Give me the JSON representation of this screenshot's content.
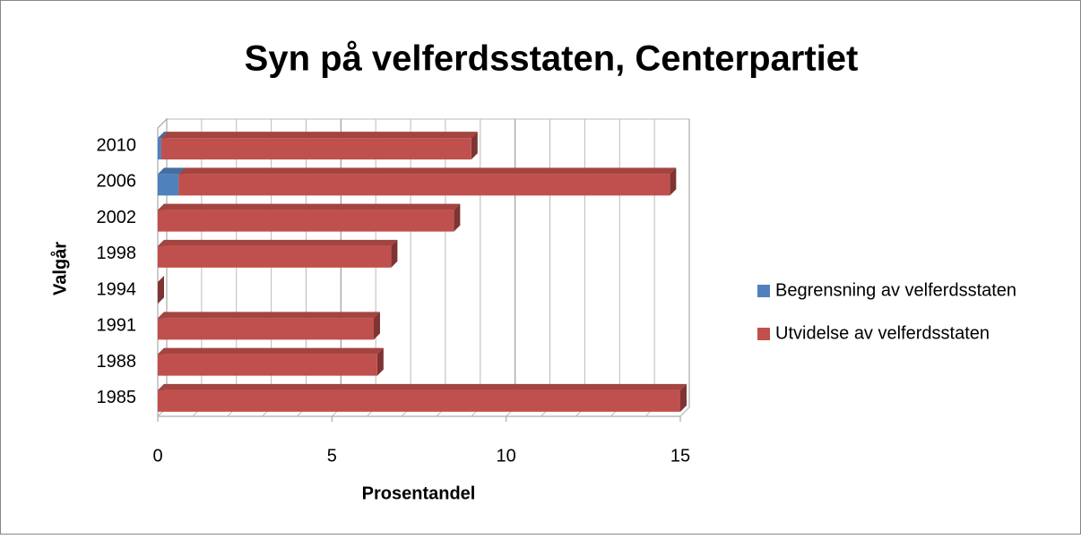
{
  "chart_data": {
    "type": "bar",
    "orientation": "horizontal",
    "stacked": true,
    "title": "Syn på velferdsstaten, Centerpartiet",
    "x_label": "Prosentandel",
    "y_label": "Valgår",
    "categories": [
      "1985",
      "1988",
      "1991",
      "1994",
      "1998",
      "2002",
      "2006",
      "2010"
    ],
    "series": [
      {
        "name": "Begrensning av velferdsstaten",
        "color": "#4f81bd",
        "values": [
          0,
          0,
          0,
          0,
          0,
          0,
          0.6,
          0.1
        ]
      },
      {
        "name": "Utvidelse av velferdsstaten",
        "color": "#c0504d",
        "values": [
          15.0,
          6.3,
          6.2,
          0,
          6.7,
          8.5,
          14.1,
          8.9
        ]
      }
    ],
    "xlim": [
      0,
      15
    ],
    "xticks": [
      0,
      5,
      10,
      15
    ],
    "minor_grid_step": 1,
    "grid": true,
    "legend": "right"
  }
}
